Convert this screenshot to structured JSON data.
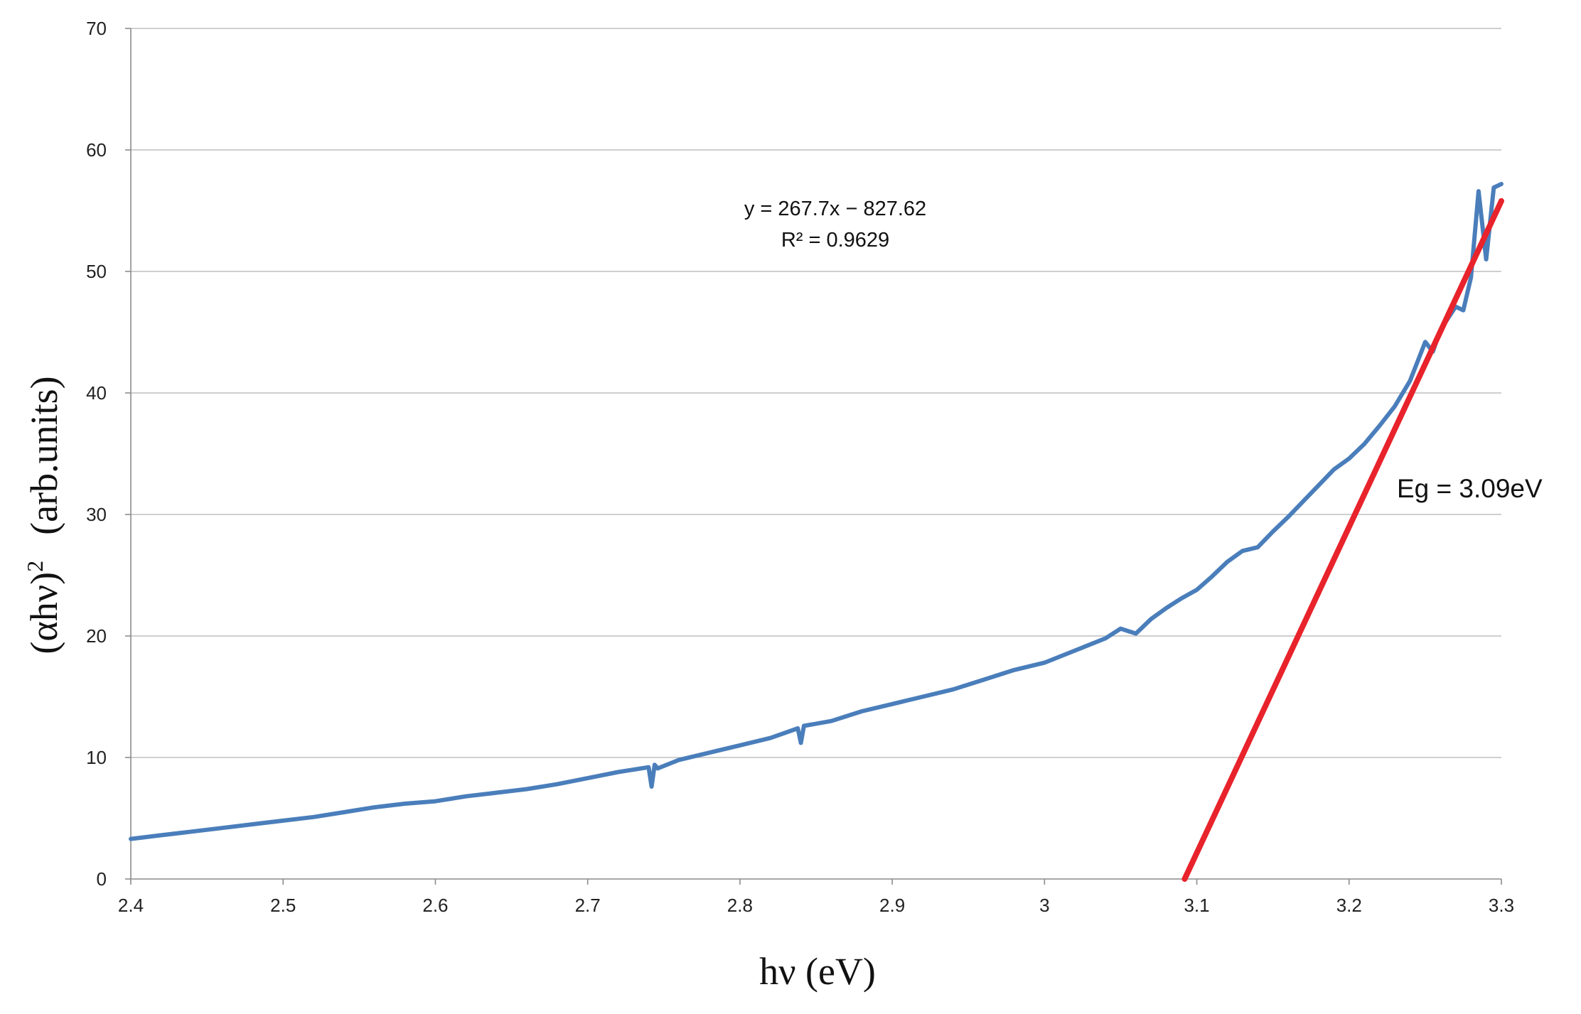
{
  "chart_data": {
    "type": "line",
    "title": "",
    "xlabel": "hν (eV)",
    "ylabel_main": "(αhν)",
    "ylabel_sup": "2",
    "ylabel_unit": "(arb.units)",
    "xlim": [
      2.4,
      3.3
    ],
    "ylim": [
      0,
      70
    ],
    "x_ticks": [
      2.4,
      2.5,
      2.6,
      2.7,
      2.8,
      2.9,
      3.0,
      3.1,
      3.2,
      3.3
    ],
    "x_tick_labels": [
      "2.4",
      "2.5",
      "2.6",
      "2.7",
      "2.8",
      "2.9",
      "3",
      "3.1",
      "3.2",
      "3.3"
    ],
    "y_ticks": [
      0,
      10,
      20,
      30,
      40,
      50,
      60,
      70
    ],
    "y_tick_labels": [
      "0",
      "10",
      "20",
      "30",
      "40",
      "50",
      "60",
      "70"
    ],
    "grid": "horizontal",
    "legend": "none",
    "series": [
      {
        "color": "#4a7ebb",
        "x": [
          2.4,
          2.42,
          2.44,
          2.46,
          2.48,
          2.5,
          2.52,
          2.54,
          2.56,
          2.58,
          2.6,
          2.62,
          2.64,
          2.66,
          2.68,
          2.7,
          2.72,
          2.74,
          2.742,
          2.744,
          2.746,
          2.76,
          2.78,
          2.8,
          2.82,
          2.838,
          2.84,
          2.842,
          2.86,
          2.88,
          2.9,
          2.92,
          2.94,
          2.96,
          2.98,
          3.0,
          3.02,
          3.04,
          3.05,
          3.06,
          3.07,
          3.08,
          3.09,
          3.1,
          3.11,
          3.12,
          3.13,
          3.14,
          3.15,
          3.16,
          3.17,
          3.18,
          3.19,
          3.2,
          3.21,
          3.22,
          3.23,
          3.24,
          3.25,
          3.255,
          3.26,
          3.27,
          3.275,
          3.28,
          3.285,
          3.29,
          3.295,
          3.3
        ],
        "y": [
          3.3,
          3.6,
          3.9,
          4.2,
          4.5,
          4.8,
          5.1,
          5.5,
          5.9,
          6.2,
          6.4,
          6.8,
          7.1,
          7.4,
          7.8,
          8.3,
          8.8,
          9.2,
          7.6,
          9.4,
          9.1,
          9.8,
          10.4,
          11.0,
          11.6,
          12.4,
          11.2,
          12.6,
          13.0,
          13.8,
          14.4,
          15.0,
          15.6,
          16.4,
          17.2,
          17.8,
          18.8,
          19.8,
          20.6,
          20.2,
          21.4,
          22.3,
          23.1,
          23.8,
          24.9,
          26.1,
          27.0,
          27.3,
          28.6,
          29.8,
          31.1,
          32.4,
          33.7,
          34.6,
          35.8,
          37.3,
          38.9,
          41.0,
          44.2,
          43.4,
          45.2,
          47.1,
          46.8,
          49.5,
          56.6,
          51.0,
          56.9,
          57.2
        ]
      }
    ],
    "fit_line": {
      "color": "#e8232b",
      "x": [
        3.092,
        3.3
      ],
      "y": [
        0,
        55.8
      ]
    },
    "annotations": {
      "equation": "y = 267.7x − 827.62",
      "r_squared": "R² = 0.9629",
      "band_gap": "Eg = 3.09eV"
    }
  }
}
